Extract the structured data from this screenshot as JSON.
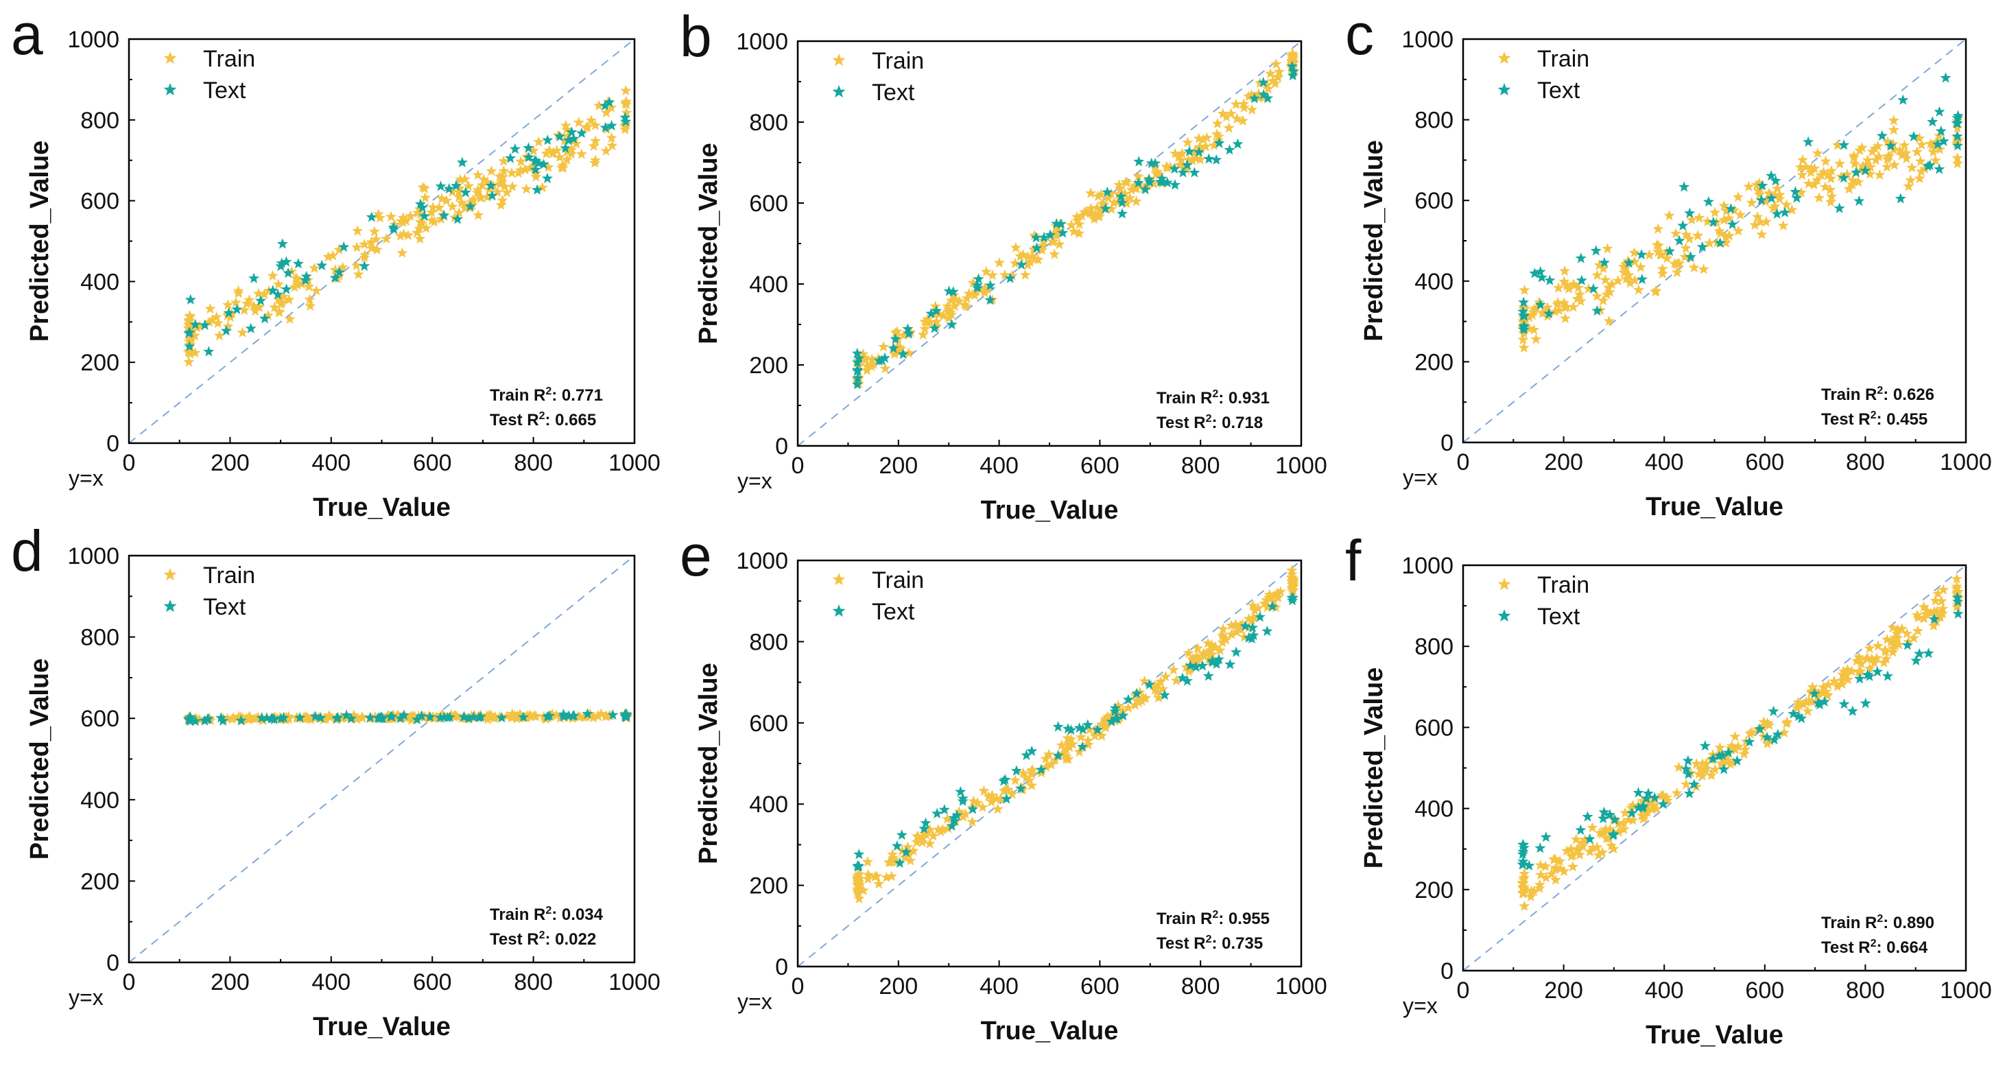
{
  "colors": {
    "train": "#F5C343",
    "test": "#14A7A0",
    "diagonal": "#7FA8D8",
    "axis": "#000000"
  },
  "icons": {
    "marker": "star-icon"
  },
  "chart_data": [
    {
      "panel": "a",
      "type": "scatter",
      "xlabel": "True_Value",
      "ylabel": "Predicted_Value",
      "xlim": [
        0,
        1000
      ],
      "ylim": [
        0,
        1000
      ],
      "xticks": [
        "0",
        "200",
        "400",
        "600",
        "800",
        "1000"
      ],
      "yticks": [
        "0",
        "200",
        "400",
        "600",
        "800",
        "1000"
      ],
      "legend": [
        "Train",
        "Text"
      ],
      "diag_label": "y=x",
      "r2_train": "0.771",
      "r2_test": "0.665",
      "trend": {
        "train": [
          [
            120,
            270
          ],
          [
            200,
            320
          ],
          [
            300,
            370
          ],
          [
            400,
            430
          ],
          [
            500,
            520
          ],
          [
            600,
            570
          ],
          [
            700,
            620
          ],
          [
            800,
            680
          ],
          [
            900,
            740
          ],
          [
            980,
            820
          ]
        ],
        "test": [
          [
            120,
            280
          ],
          [
            200,
            330
          ],
          [
            300,
            400
          ],
          [
            400,
            460
          ],
          [
            500,
            530
          ],
          [
            600,
            590
          ],
          [
            700,
            640
          ],
          [
            800,
            690
          ],
          [
            900,
            760
          ],
          [
            980,
            830
          ]
        ]
      }
    },
    {
      "panel": "b",
      "type": "scatter",
      "xlabel": "True_Value",
      "ylabel": "Predicted_Value",
      "xlim": [
        0,
        1000
      ],
      "ylim": [
        0,
        1000
      ],
      "xticks": [
        "0",
        "200",
        "400",
        "600",
        "800",
        "1000"
      ],
      "yticks": [
        "0",
        "200",
        "400",
        "600",
        "800",
        "1000"
      ],
      "legend": [
        "Train",
        "Text"
      ],
      "diag_label": "y=x",
      "r2_train": "0.931",
      "r2_test": "0.718",
      "trend": {
        "train": [
          [
            120,
            180
          ],
          [
            200,
            250
          ],
          [
            300,
            330
          ],
          [
            400,
            420
          ],
          [
            500,
            500
          ],
          [
            600,
            590
          ],
          [
            700,
            660
          ],
          [
            800,
            730
          ],
          [
            900,
            860
          ],
          [
            980,
            950
          ]
        ],
        "test": [
          [
            120,
            200
          ],
          [
            200,
            260
          ],
          [
            300,
            360
          ],
          [
            400,
            420
          ],
          [
            500,
            520
          ],
          [
            600,
            580
          ],
          [
            700,
            660
          ],
          [
            800,
            700
          ],
          [
            900,
            800
          ],
          [
            980,
            940
          ]
        ]
      }
    },
    {
      "panel": "c",
      "type": "scatter",
      "xlabel": "True_Value",
      "ylabel": "Predicted_Value",
      "xlim": [
        0,
        1000
      ],
      "ylim": [
        0,
        1000
      ],
      "xticks": [
        "0",
        "200",
        "400",
        "600",
        "800",
        "1000"
      ],
      "yticks": [
        "0",
        "200",
        "400",
        "600",
        "800",
        "1000"
      ],
      "legend": [
        "Train",
        "Text"
      ],
      "diag_label": "y=x",
      "r2_train": "0.626",
      "r2_test": "0.455",
      "trend": {
        "train": [
          [
            120,
            300
          ],
          [
            200,
            350
          ],
          [
            300,
            400
          ],
          [
            400,
            460
          ],
          [
            500,
            530
          ],
          [
            600,
            600
          ],
          [
            700,
            650
          ],
          [
            800,
            690
          ],
          [
            900,
            720
          ],
          [
            980,
            760
          ]
        ],
        "test": [
          [
            120,
            320
          ],
          [
            200,
            380
          ],
          [
            300,
            430
          ],
          [
            400,
            480
          ],
          [
            500,
            560
          ],
          [
            600,
            610
          ],
          [
            700,
            640
          ],
          [
            800,
            680
          ],
          [
            900,
            720
          ],
          [
            980,
            780
          ]
        ]
      }
    },
    {
      "panel": "d",
      "type": "scatter",
      "xlabel": "True_Value",
      "ylabel": "Predicted_Value",
      "xlim": [
        0,
        1000
      ],
      "ylim": [
        0,
        1000
      ],
      "xticks": [
        "0",
        "200",
        "400",
        "600",
        "800",
        "1000"
      ],
      "yticks": [
        "0",
        "200",
        "400",
        "600",
        "800",
        "1000"
      ],
      "legend": [
        "Train",
        "Text"
      ],
      "diag_label": "y=x",
      "r2_train": "0.034",
      "r2_test": "0.022",
      "trend": {
        "train": [
          [
            120,
            598
          ],
          [
            200,
            599
          ],
          [
            300,
            600
          ],
          [
            400,
            601
          ],
          [
            500,
            602
          ],
          [
            600,
            603
          ],
          [
            700,
            604
          ],
          [
            800,
            605
          ],
          [
            900,
            606
          ],
          [
            980,
            606
          ]
        ],
        "test": [
          [
            120,
            596
          ],
          [
            200,
            598
          ],
          [
            300,
            600
          ],
          [
            400,
            601
          ],
          [
            500,
            602
          ],
          [
            600,
            603
          ],
          [
            700,
            604
          ],
          [
            800,
            604
          ],
          [
            900,
            605
          ],
          [
            980,
            606
          ]
        ]
      }
    },
    {
      "panel": "e",
      "type": "scatter",
      "xlabel": "True_Value",
      "ylabel": "Predicted_Value",
      "xlim": [
        0,
        1000
      ],
      "ylim": [
        0,
        1000
      ],
      "xticks": [
        "0",
        "200",
        "400",
        "600",
        "800",
        "1000"
      ],
      "yticks": [
        "0",
        "200",
        "400",
        "600",
        "800",
        "1000"
      ],
      "legend": [
        "Train",
        "Text"
      ],
      "diag_label": "y=x",
      "r2_train": "0.955",
      "r2_test": "0.735",
      "trend": {
        "train": [
          [
            120,
            200
          ],
          [
            200,
            270
          ],
          [
            300,
            350
          ],
          [
            400,
            430
          ],
          [
            500,
            500
          ],
          [
            600,
            590
          ],
          [
            700,
            680
          ],
          [
            800,
            760
          ],
          [
            900,
            860
          ],
          [
            980,
            940
          ]
        ],
        "test": [
          [
            120,
            250
          ],
          [
            200,
            300
          ],
          [
            300,
            380
          ],
          [
            400,
            440
          ],
          [
            500,
            530
          ],
          [
            600,
            600
          ],
          [
            700,
            680
          ],
          [
            800,
            720
          ],
          [
            900,
            820
          ],
          [
            980,
            930
          ]
        ]
      }
    },
    {
      "panel": "f",
      "type": "scatter",
      "xlabel": "True_Value",
      "ylabel": "Predicted_Value",
      "xlim": [
        0,
        1000
      ],
      "ylim": [
        0,
        1000
      ],
      "xticks": [
        "0",
        "200",
        "400",
        "600",
        "800",
        "1000"
      ],
      "yticks": [
        "0",
        "200",
        "400",
        "600",
        "800",
        "1000"
      ],
      "legend": [
        "Train",
        "Text"
      ],
      "diag_label": "y=x",
      "r2_train": "0.890",
      "r2_test": "0.664",
      "trend": {
        "train": [
          [
            120,
            200
          ],
          [
            200,
            270
          ],
          [
            300,
            340
          ],
          [
            400,
            430
          ],
          [
            500,
            510
          ],
          [
            600,
            600
          ],
          [
            700,
            670
          ],
          [
            800,
            760
          ],
          [
            900,
            850
          ],
          [
            980,
            920
          ]
        ],
        "test": [
          [
            120,
            280
          ],
          [
            200,
            320
          ],
          [
            300,
            380
          ],
          [
            400,
            450
          ],
          [
            500,
            520
          ],
          [
            600,
            580
          ],
          [
            700,
            640
          ],
          [
            800,
            700
          ],
          [
            900,
            800
          ],
          [
            980,
            900
          ]
        ]
      }
    }
  ]
}
